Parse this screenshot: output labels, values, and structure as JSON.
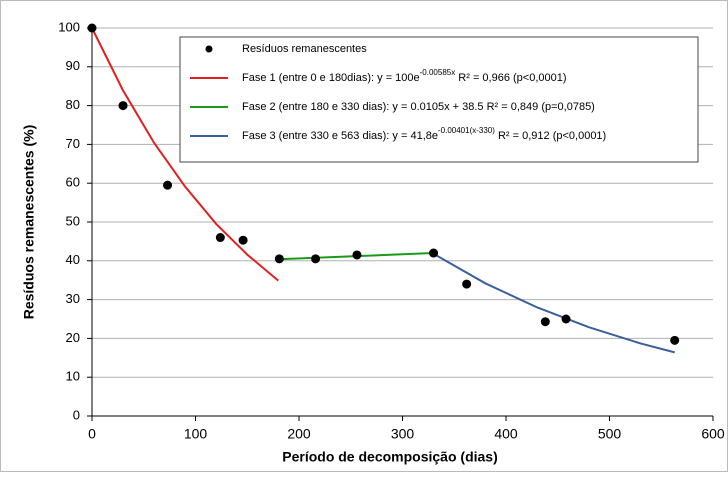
{
  "chart_data": {
    "type": "scatter",
    "x_label": "Período de decomposição (dias)",
    "y_label": "Resíduos remanescentes (%)",
    "xlim": [
      0,
      600
    ],
    "xticks": [
      0,
      100,
      200,
      300,
      400,
      500,
      600
    ],
    "ylim": [
      0,
      100
    ],
    "yticks": [
      0,
      10,
      20,
      30,
      40,
      50,
      60,
      70,
      80,
      90,
      100
    ],
    "grid": true,
    "series": [
      {
        "type": "scatter",
        "name": "Resíduos remanescentes",
        "color": "#000000",
        "x": [
          0,
          30,
          73,
          124,
          146,
          181,
          216,
          256,
          330,
          362,
          438,
          458,
          563
        ],
        "values": [
          100,
          80,
          59.5,
          46,
          45.3,
          40.5,
          40.5,
          41.5,
          42,
          34,
          24.3,
          25,
          19.5
        ]
      },
      {
        "type": "line",
        "name": "Fase 1 (entre 0 e 180dias): y = 100e",
        "name_sup": "-0.00585x",
        "name_rest": " R² = 0,966 (p<0,0001)",
        "color": "#e02020",
        "x": [
          0,
          30,
          60,
          90,
          120,
          150,
          180
        ],
        "values": [
          100,
          83.9,
          70.4,
          59.1,
          49.5,
          41.6,
          34.9
        ]
      },
      {
        "type": "line",
        "name": "Fase 2 (entre 180 e 330 dias): y = 0.0105x + 38.5 R² = 0,849 (p=0,0785)",
        "color": "#1a9a1a",
        "x": [
          180,
          330
        ],
        "values": [
          40.4,
          42.0
        ]
      },
      {
        "type": "line",
        "name": "Fase 3 (entre 330 e 563 dias): y = 41,8e",
        "name_sup": "-0.00401(x-330)",
        "name_rest": " R² = 0,912 (p<0,0001)",
        "color": "#3a5f9a",
        "x": [
          330,
          380,
          430,
          480,
          530,
          563
        ],
        "values": [
          41.8,
          34.2,
          28.0,
          22.9,
          18.7,
          16.4
        ]
      }
    ]
  }
}
